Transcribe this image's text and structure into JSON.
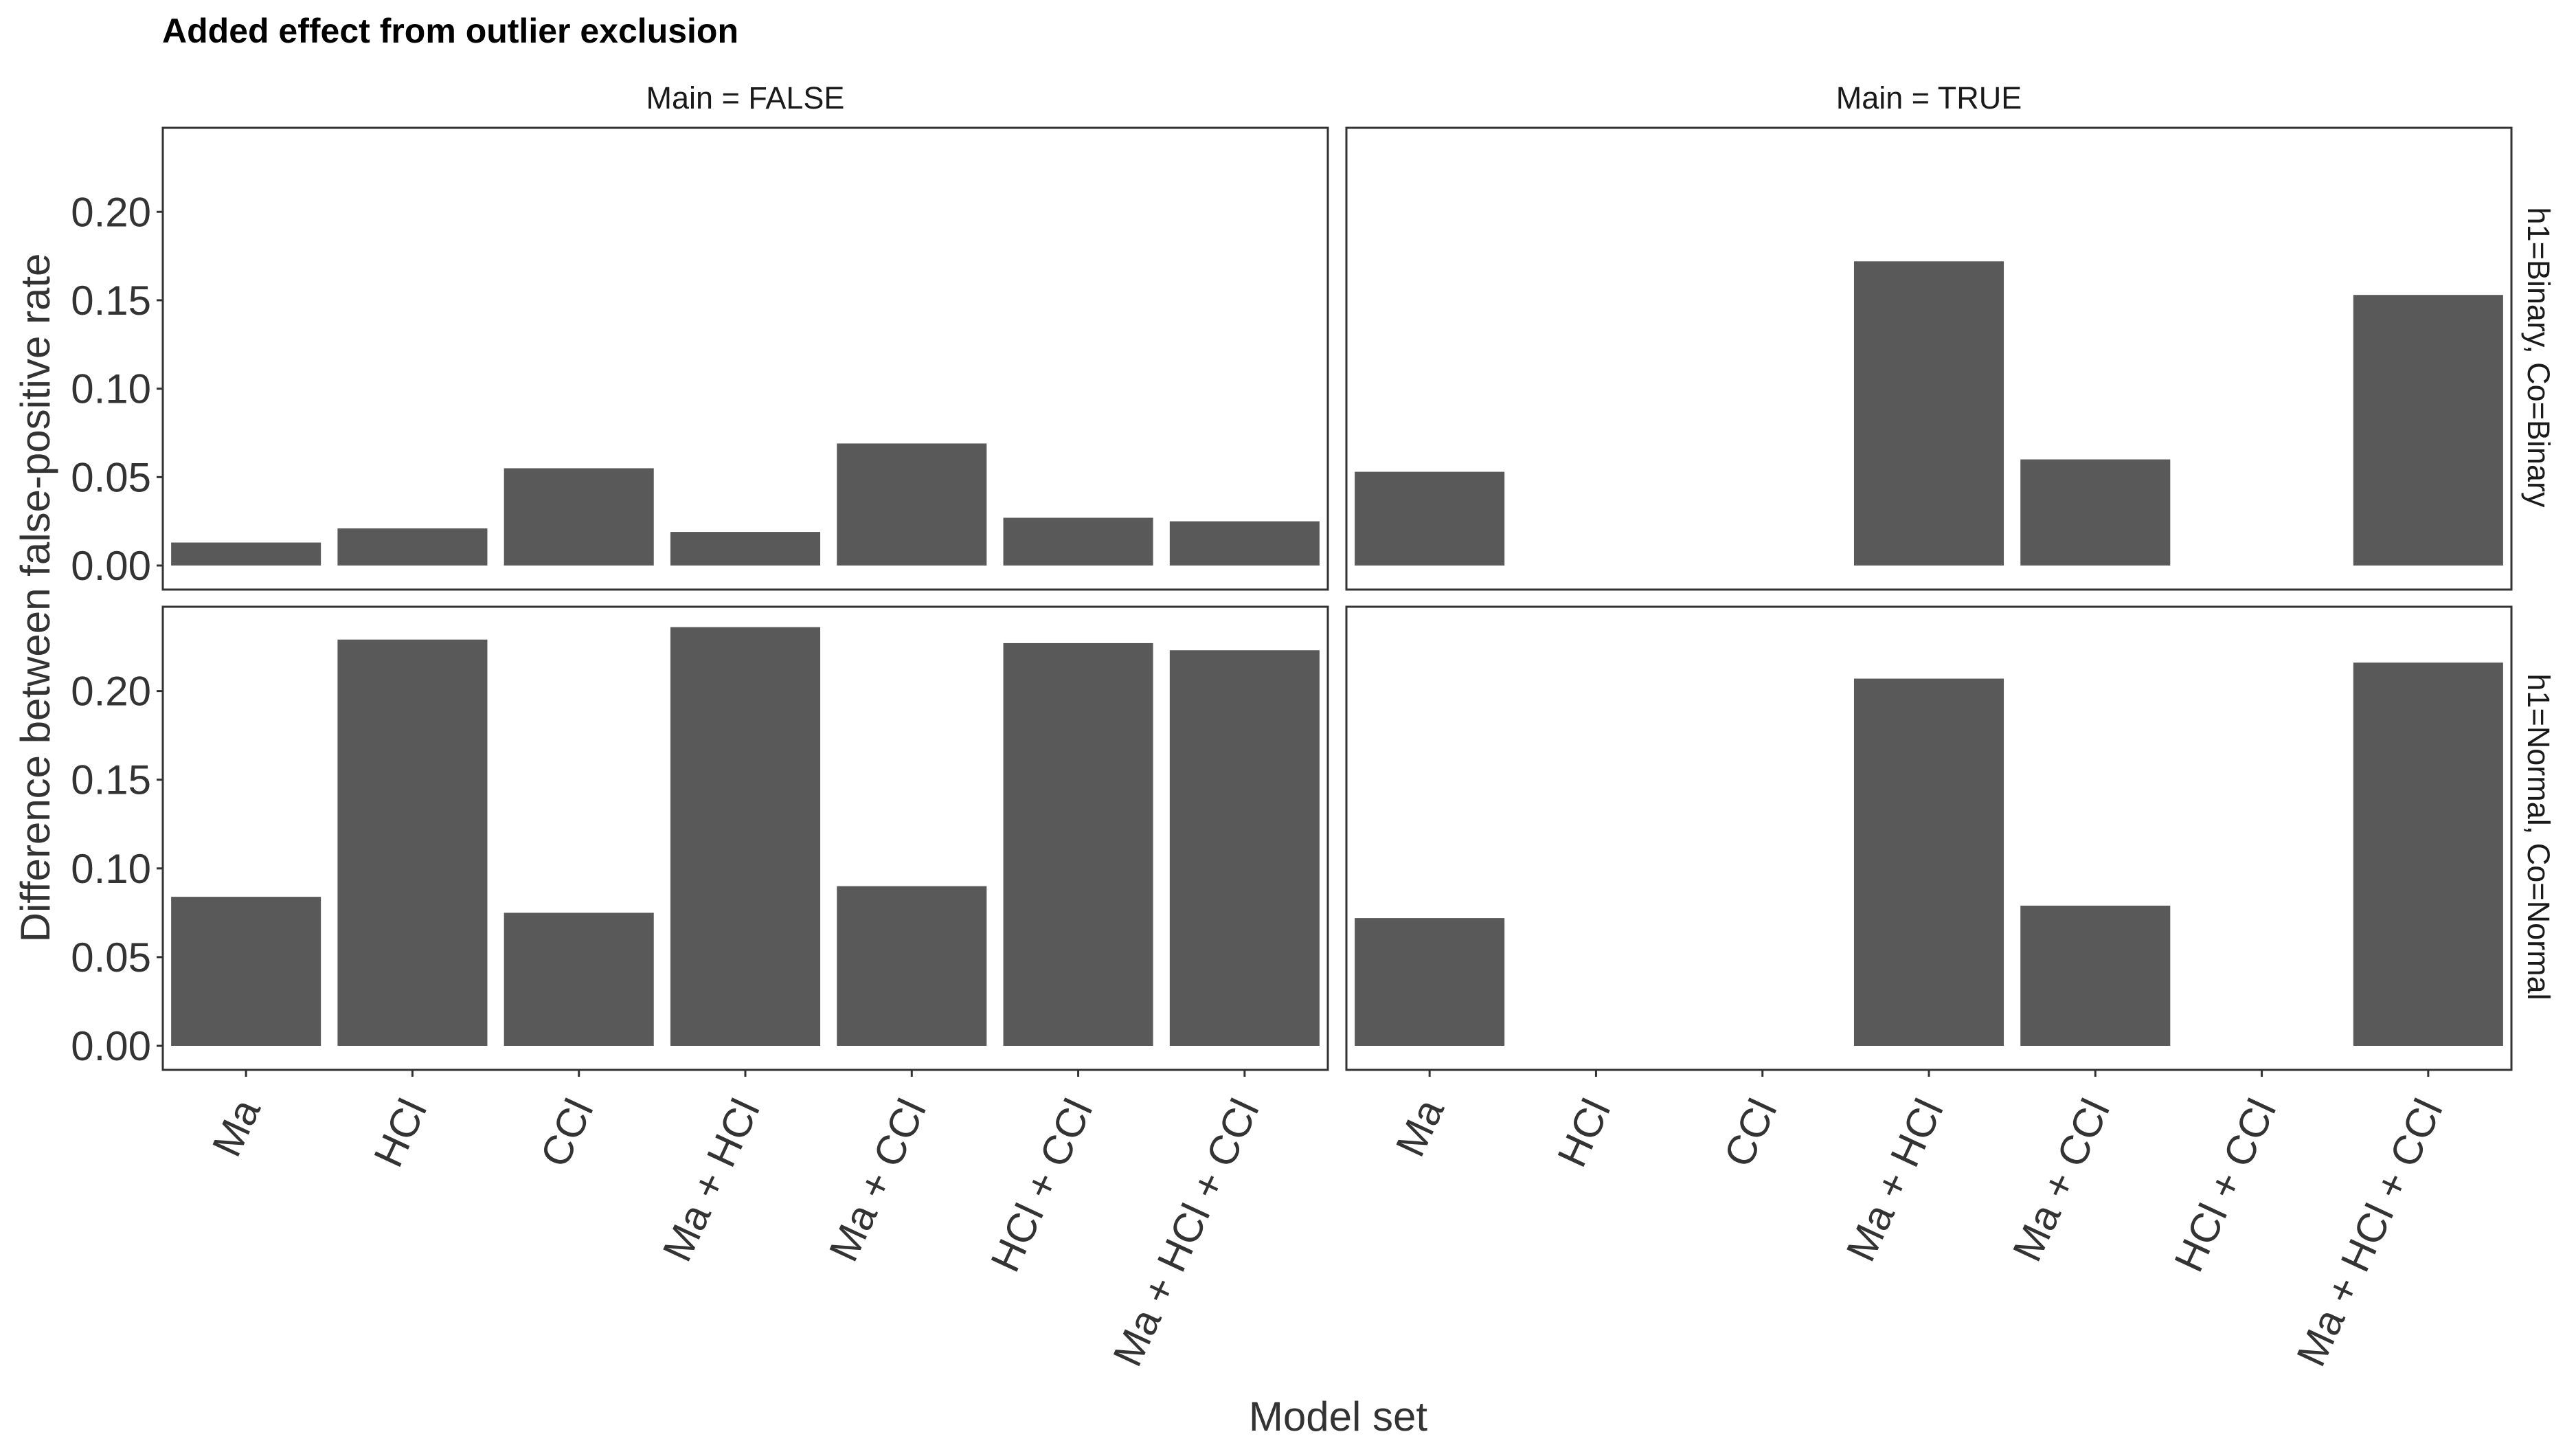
{
  "chart_data": {
    "type": "bar",
    "title": "Added effect from outlier exclusion",
    "xlabel": "Model set",
    "ylabel": "Difference between false-positive rate",
    "categories": [
      "Ma",
      "HCl",
      "CCl",
      "Ma + HCl",
      "Ma + CCl",
      "HCl + CCl",
      "Ma + HCl + CCl"
    ],
    "y_ticks": [
      "0.00",
      "0.05",
      "0.10",
      "0.15",
      "0.20"
    ],
    "ylim": [
      0,
      0.2475
    ],
    "bar_color": "#595959",
    "grid": false,
    "facet_columns": [
      "Main = FALSE",
      "Main = TRUE"
    ],
    "facet_rows": [
      "h1=Binary, Co=Binary",
      "h1=Normal, Co=Normal"
    ],
    "panels": [
      {
        "column": "Main = FALSE",
        "row": "h1=Binary, Co=Binary",
        "values": [
          0.013,
          0.021,
          0.055,
          0.019,
          0.069,
          0.027,
          0.025
        ]
      },
      {
        "column": "Main = TRUE",
        "row": "h1=Binary, Co=Binary",
        "values": [
          0.053,
          null,
          null,
          0.172,
          0.06,
          null,
          0.153
        ]
      },
      {
        "column": "Main = FALSE",
        "row": "h1=Normal, Co=Normal",
        "values": [
          0.084,
          0.229,
          0.075,
          0.236,
          0.09,
          0.227,
          0.223
        ]
      },
      {
        "column": "Main = TRUE",
        "row": "h1=Normal, Co=Normal",
        "values": [
          0.072,
          null,
          null,
          0.207,
          0.079,
          null,
          0.216
        ]
      }
    ]
  }
}
